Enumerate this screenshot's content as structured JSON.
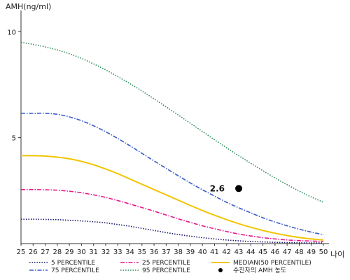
{
  "chart_data": {
    "type": "line",
    "ylabel": "AMH(ng/ml)",
    "xlabel": "나이",
    "x": [
      25,
      26,
      27,
      28,
      29,
      30,
      31,
      32,
      33,
      34,
      35,
      36,
      37,
      38,
      39,
      40,
      41,
      42,
      43,
      44,
      45,
      46,
      47,
      48,
      49,
      50
    ],
    "x_ticks": [
      "25",
      "26",
      "27",
      "28",
      "29",
      "30",
      "31",
      "32",
      "33",
      "34",
      "35",
      "36",
      "37",
      "38",
      "39",
      "40",
      "41",
      "42",
      "43",
      "44",
      "45",
      "46",
      "47",
      "48",
      "49",
      "50"
    ],
    "y_ticks": [
      "5",
      "10"
    ],
    "ylim": [
      0,
      11.0
    ],
    "xlim": [
      25,
      50
    ],
    "grid": false,
    "legend_position": "bottom",
    "series": [
      {
        "name": "5 PERCENTILE",
        "color": "#1a1a6e",
        "style": "dotted",
        "values": [
          1.15,
          1.15,
          1.14,
          1.13,
          1.1,
          1.07,
          1.03,
          0.98,
          0.9,
          0.82,
          0.72,
          0.62,
          0.52,
          0.43,
          0.35,
          0.28,
          0.22,
          0.17,
          0.13,
          0.1,
          0.08,
          0.06,
          0.05,
          0.04,
          0.03,
          0.03
        ]
      },
      {
        "name": "25 PERCENTILE",
        "color": "#e6198c",
        "style": "dashdot",
        "values": [
          2.55,
          2.55,
          2.54,
          2.52,
          2.47,
          2.4,
          2.3,
          2.18,
          2.03,
          1.87,
          1.7,
          1.53,
          1.35,
          1.17,
          1.0,
          0.84,
          0.7,
          0.57,
          0.45,
          0.36,
          0.28,
          0.22,
          0.17,
          0.14,
          0.12,
          0.1
        ]
      },
      {
        "name": "MEDIAN(50 PERCENTILE)",
        "color": "#f2c400",
        "style": "solid",
        "values": [
          4.15,
          4.15,
          4.13,
          4.08,
          4.0,
          3.88,
          3.72,
          3.52,
          3.3,
          3.05,
          2.8,
          2.55,
          2.3,
          2.05,
          1.8,
          1.56,
          1.34,
          1.13,
          0.94,
          0.77,
          0.62,
          0.49,
          0.38,
          0.29,
          0.22,
          0.17
        ]
      },
      {
        "name": "75 PERCENTILE",
        "color": "#3a5bc7",
        "style": "dashdot",
        "values": [
          6.15,
          6.15,
          6.15,
          6.1,
          5.98,
          5.8,
          5.56,
          5.28,
          4.96,
          4.62,
          4.26,
          3.9,
          3.55,
          3.2,
          2.86,
          2.54,
          2.24,
          1.95,
          1.69,
          1.45,
          1.22,
          1.02,
          0.84,
          0.68,
          0.54,
          0.42
        ]
      },
      {
        "name": "95 PERCENTILE",
        "color": "#2e8b57",
        "style": "dotted",
        "values": [
          9.5,
          9.4,
          9.28,
          9.14,
          8.96,
          8.74,
          8.48,
          8.2,
          7.88,
          7.55,
          7.2,
          6.83,
          6.45,
          6.07,
          5.68,
          5.29,
          4.9,
          4.52,
          4.15,
          3.79,
          3.44,
          3.1,
          2.78,
          2.48,
          2.2,
          1.95
        ]
      }
    ],
    "annotations": [
      {
        "name": "수진자의 AMH 농도",
        "x": 43,
        "y": 2.6,
        "label": "2.6"
      }
    ]
  }
}
